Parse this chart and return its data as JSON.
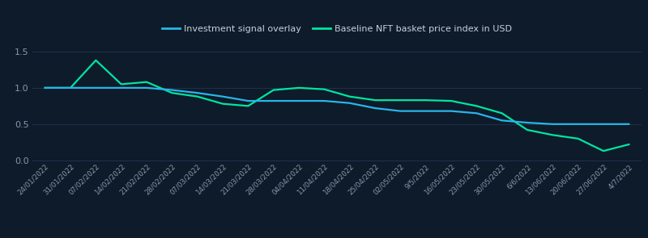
{
  "background_color": "#0d1b2a",
  "plot_bg_color": "#0d1b2a",
  "grid_color": "#253555",
  "text_color": "#c8d0dc",
  "tick_label_color": "#8899aa",
  "legend_labels": [
    "Investment signal overlay",
    "Baseline NFT basket price index in USD"
  ],
  "line_blue_color": "#29b5e8",
  "line_green_color": "#00e5a0",
  "x_labels": [
    "24/01/2022",
    "31/01/2022",
    "07/02/2022",
    "14/02/2022",
    "21/02/2022",
    "28/02/2022",
    "07/03/2022",
    "14/03/2022",
    "21/03/2022",
    "28/03/2022",
    "04/04/2022",
    "11/04/2022",
    "18/04/2022",
    "25/04/2022",
    "02/05/2022",
    "9/5/2022",
    "16/05/2022",
    "23/05/2022",
    "30/05/2022",
    "6/6/2022",
    "13/06/2022",
    "20/06/2022",
    "27/06/2022",
    "4/7/2022"
  ],
  "blue_y": [
    1.0,
    1.0,
    1.0,
    1.0,
    1.0,
    0.97,
    0.93,
    0.88,
    0.82,
    0.82,
    0.82,
    0.82,
    0.79,
    0.72,
    0.68,
    0.68,
    0.68,
    0.65,
    0.55,
    0.52,
    0.5,
    0.5,
    0.5,
    0.5
  ],
  "green_y": [
    1.0,
    1.0,
    1.38,
    1.05,
    1.08,
    0.93,
    0.88,
    0.78,
    0.75,
    0.97,
    1.0,
    0.98,
    0.88,
    0.83,
    0.83,
    0.83,
    0.82,
    0.75,
    0.65,
    0.42,
    0.35,
    0.3,
    0.13,
    0.22
  ],
  "ylim": [
    -0.02,
    1.62
  ],
  "yticks": [
    0.0,
    0.5,
    1.0,
    1.5
  ],
  "figsize": [
    8.0,
    2.95
  ],
  "dpi": 100
}
